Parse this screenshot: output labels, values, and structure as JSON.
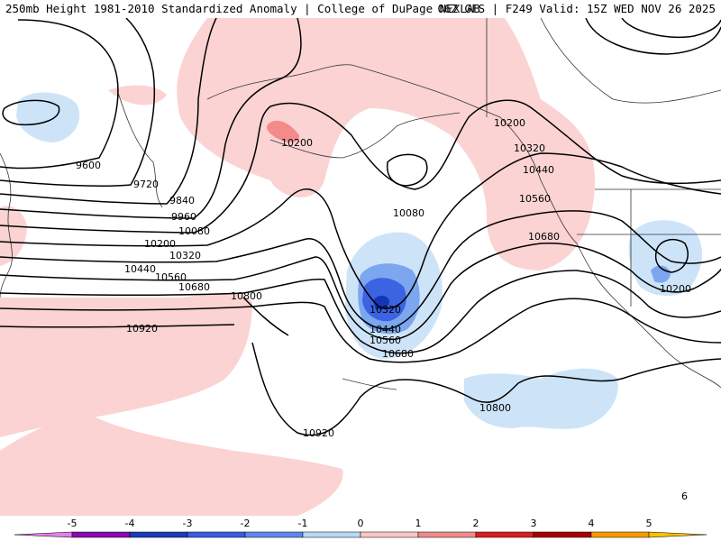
{
  "header": {
    "left": "250mb Height 1981-2010 Standardized Anomaly | College of DuPage NEXLAB",
    "right": "06Z GFS | F249 Valid: 15Z WED NOV 26 2025"
  },
  "contour_labels": {
    "l9600": "9600",
    "l9720": "9720",
    "l9840": "9840",
    "l9960": "9960",
    "l10080a": "10080",
    "l10200a": "10200",
    "l10320a": "10320",
    "l10440a": "10440",
    "l10560a": "10560",
    "l10680a": "10680",
    "l10800a": "10800",
    "l10920a": "10920",
    "l10200b": "10200",
    "l10080b": "10080",
    "l10320b": "10320",
    "l10440b": "10440",
    "l10560b": "10560",
    "l10680b": "10680",
    "l10200c": "10200",
    "l10320c": "10320",
    "l10440c": "10440",
    "l10560c": "10560",
    "l10680c": "10680",
    "l10200d": "10200",
    "l10800b": "10800",
    "l10920b": "10920",
    "l6": "6"
  },
  "colorbar": {
    "labels": [
      "-5",
      "-4",
      "-3",
      "-2",
      "-1",
      "0",
      "1",
      "2",
      "3",
      "4",
      "5"
    ],
    "colors": [
      "#8a0ab0",
      "#1b3ab8",
      "#3a5cdf",
      "#5f86ee",
      "#b9d6f7",
      "#ffffff",
      "#f9c6c6",
      "#f08a8a",
      "#d62020",
      "#a80000",
      "#f59b00"
    ],
    "end_colors": [
      "#e080e8",
      "#f8c000"
    ]
  },
  "anomaly_colors": {
    "pos1": "#fbd3d3",
    "pos2": "#f38b8b",
    "neg1": "#cde3f8",
    "neg2": "#7ca6ef",
    "neg3": "#3b63e2",
    "neg4": "#1535b5"
  }
}
